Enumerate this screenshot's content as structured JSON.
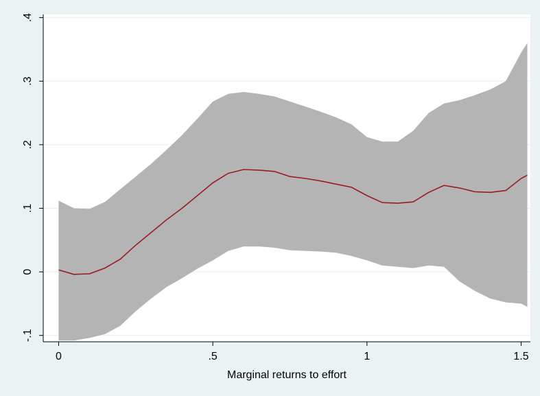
{
  "chart_data": {
    "type": "line",
    "title": "",
    "xlabel": "Marginal returns to effort",
    "ylabel": "",
    "xlim": [
      -0.05,
      1.53
    ],
    "ylim": [
      -0.11,
      0.405
    ],
    "x_ticks": [
      0,
      0.5,
      1,
      1.5
    ],
    "x_tick_labels": [
      "0",
      ".5",
      "1",
      "1.5"
    ],
    "y_ticks": [
      -0.1,
      0,
      0.1,
      0.2,
      0.3,
      0.4
    ],
    "y_tick_labels": [
      "-.1",
      "0",
      ".1",
      ".2",
      ".3",
      ".4"
    ],
    "grid": "horizontal",
    "legend": "none",
    "colors": {
      "background": "#eaf2f3",
      "plot_background": "#ffffff",
      "band": "#b4b4b4",
      "line": "#9b1b25",
      "gridline": "#e8eef0"
    },
    "x": [
      0,
      0.05,
      0.1,
      0.15,
      0.2,
      0.25,
      0.3,
      0.35,
      0.4,
      0.45,
      0.5,
      0.55,
      0.6,
      0.65,
      0.7,
      0.75,
      0.8,
      0.85,
      0.9,
      0.95,
      1.0,
      1.05,
      1.1,
      1.15,
      1.2,
      1.25,
      1.3,
      1.35,
      1.4,
      1.45,
      1.5,
      1.52
    ],
    "series": [
      {
        "role": "estimate",
        "values": [
          0.003,
          -0.004,
          -0.003,
          0.006,
          0.02,
          0.042,
          0.062,
          0.082,
          0.1,
          0.12,
          0.14,
          0.155,
          0.161,
          0.16,
          0.158,
          0.15,
          0.147,
          0.143,
          0.138,
          0.133,
          0.12,
          0.109,
          0.108,
          0.11,
          0.125,
          0.136,
          0.132,
          0.126,
          0.125,
          0.128,
          0.147,
          0.152
        ]
      },
      {
        "role": "upper bound",
        "values": [
          0.112,
          0.1,
          0.099,
          0.11,
          0.13,
          0.15,
          0.17,
          0.192,
          0.215,
          0.241,
          0.268,
          0.28,
          0.283,
          0.28,
          0.276,
          0.268,
          0.26,
          0.252,
          0.243,
          0.232,
          0.212,
          0.205,
          0.205,
          0.222,
          0.25,
          0.265,
          0.27,
          0.278,
          0.287,
          0.3,
          0.345,
          0.36
        ]
      },
      {
        "role": "lower bound",
        "values": [
          -0.108,
          -0.108,
          -0.104,
          -0.098,
          -0.085,
          -0.062,
          -0.042,
          -0.024,
          -0.01,
          0.005,
          0.018,
          0.033,
          0.04,
          0.04,
          0.038,
          0.034,
          0.033,
          0.032,
          0.03,
          0.025,
          0.018,
          0.01,
          0.008,
          0.006,
          0.01,
          0.008,
          -0.015,
          -0.03,
          -0.042,
          -0.048,
          -0.05,
          -0.055
        ]
      }
    ]
  }
}
